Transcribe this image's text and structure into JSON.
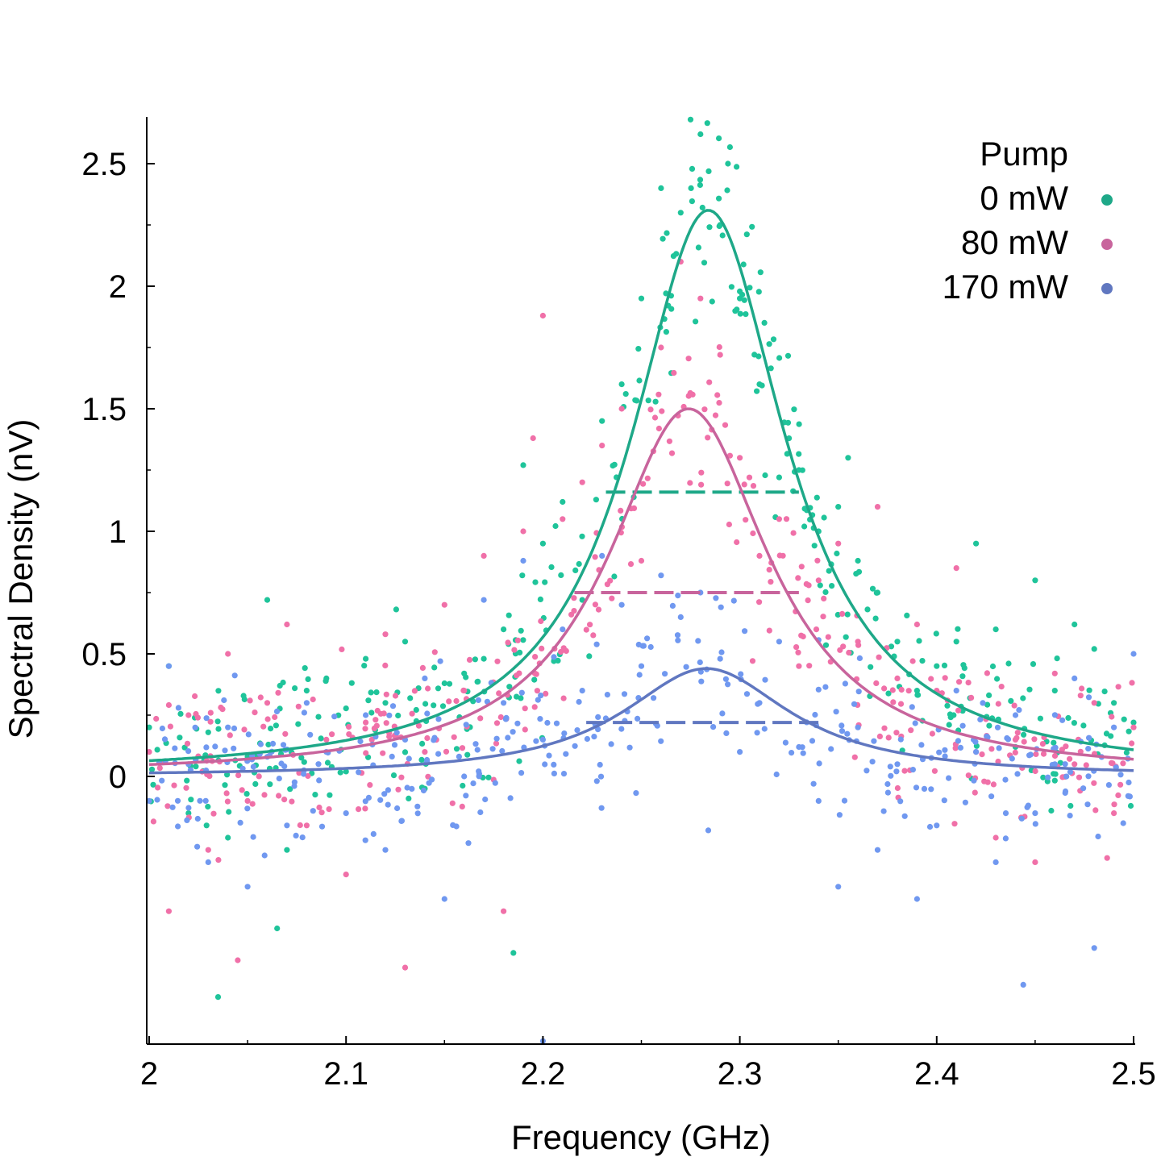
{
  "chart_data": {
    "type": "scatter",
    "xlabel": "Frequency (GHz)",
    "ylabel": "Spectral Density (nV)",
    "xlim": [
      2.0,
      2.5
    ],
    "ylim": [
      -1.1,
      2.68
    ],
    "x_ticks": [
      {
        "value": 2.0,
        "label": "2"
      },
      {
        "value": 2.1,
        "label": "2.1"
      },
      {
        "value": 2.2,
        "label": "2.2"
      },
      {
        "value": 2.3,
        "label": "2.3"
      },
      {
        "value": 2.4,
        "label": "2.4"
      },
      {
        "value": 2.5,
        "label": "2.5"
      }
    ],
    "y_ticks": [
      {
        "value": 0,
        "label": "0"
      },
      {
        "value": 0.5,
        "label": "0.5"
      },
      {
        "value": 1,
        "label": "1"
      },
      {
        "value": 1.5,
        "label": "1.5"
      },
      {
        "value": 2,
        "label": "2"
      },
      {
        "value": 2.5,
        "label": "2.5"
      }
    ],
    "grid": false,
    "legend_title": "Pump",
    "legend_position": "top-right",
    "series": [
      {
        "name": "0 mW",
        "color": "#1ea888",
        "point_color": "#1fc49a",
        "peak_x": 2.284,
        "peak_y": 2.31,
        "hwhm": 0.048,
        "baseline": 0.0,
        "half_max_y": 1.16,
        "half_max_x_range": [
          2.232,
          2.33
        ],
        "points": [
          [
            2.0,
            0.2
          ],
          [
            2.01,
            0.45
          ],
          [
            2.02,
            -0.15
          ],
          [
            2.03,
            0.18
          ],
          [
            2.04,
            -0.25
          ],
          [
            2.05,
            0.08
          ],
          [
            2.06,
            0.72
          ],
          [
            2.07,
            -0.3
          ],
          [
            2.08,
            0.35
          ],
          [
            2.09,
            0.4
          ],
          [
            2.1,
            0.02
          ],
          [
            2.11,
            0.48
          ],
          [
            2.12,
            0.3
          ],
          [
            2.13,
            0.55
          ],
          [
            2.14,
            -0.05
          ],
          [
            2.15,
            0.38
          ],
          [
            2.16,
            0.42
          ],
          [
            2.17,
            0.48
          ],
          [
            2.18,
            0.6
          ],
          [
            2.19,
            1.27
          ],
          [
            2.2,
            0.95
          ],
          [
            2.21,
            1.12
          ],
          [
            2.22,
            0.72
          ],
          [
            2.23,
            1.45
          ],
          [
            2.24,
            1.6
          ],
          [
            2.25,
            1.95
          ],
          [
            2.26,
            2.4
          ],
          [
            2.27,
            2.3
          ],
          [
            2.28,
            2.62
          ],
          [
            2.29,
            2.25
          ],
          [
            2.3,
            1.95
          ],
          [
            2.31,
            1.6
          ],
          [
            2.32,
            1.22
          ],
          [
            2.33,
            1.25
          ],
          [
            2.34,
            1.0
          ],
          [
            2.35,
            1.1
          ],
          [
            2.36,
            0.88
          ],
          [
            2.37,
            0.75
          ],
          [
            2.38,
            0.55
          ],
          [
            2.39,
            0.35
          ],
          [
            2.4,
            0.45
          ],
          [
            2.41,
            0.55
          ],
          [
            2.42,
            0.95
          ],
          [
            2.43,
            0.6
          ],
          [
            2.44,
            0.12
          ],
          [
            2.45,
            0.8
          ],
          [
            2.46,
            0.35
          ],
          [
            2.47,
            0.62
          ],
          [
            2.48,
            0.52
          ],
          [
            2.49,
            0.3
          ],
          [
            2.5,
            0.22
          ],
          [
            2.035,
            -0.9
          ],
          [
            2.275,
            2.68
          ],
          [
            2.294,
            2.5
          ],
          [
            2.065,
            -0.62
          ],
          [
            2.185,
            -0.72
          ],
          [
            2.355,
            1.3
          ]
        ]
      },
      {
        "name": "80 mW",
        "color": "#c8649c",
        "point_color": "#f070a8",
        "peak_x": 2.274,
        "peak_y": 1.5,
        "hwhm": 0.05,
        "baseline": 0.0,
        "half_max_y": 0.75,
        "half_max_x_range": [
          2.216,
          2.33
        ],
        "points": [
          [
            2.0,
            0.1
          ],
          [
            2.01,
            -0.55
          ],
          [
            2.02,
            0.25
          ],
          [
            2.03,
            -0.3
          ],
          [
            2.04,
            0.5
          ],
          [
            2.05,
            -0.1
          ],
          [
            2.06,
            0.3
          ],
          [
            2.07,
            0.62
          ],
          [
            2.08,
            -0.2
          ],
          [
            2.09,
            0.15
          ],
          [
            2.1,
            -0.4
          ],
          [
            2.11,
            0.22
          ],
          [
            2.12,
            0.58
          ],
          [
            2.13,
            -0.78
          ],
          [
            2.14,
            0.1
          ],
          [
            2.15,
            0.7
          ],
          [
            2.16,
            0.35
          ],
          [
            2.17,
            0.9
          ],
          [
            2.18,
            -0.55
          ],
          [
            2.19,
            1.0
          ],
          [
            2.2,
            1.88
          ],
          [
            2.21,
            1.05
          ],
          [
            2.22,
            1.2
          ],
          [
            2.23,
            1.35
          ],
          [
            2.24,
            1.5
          ],
          [
            2.25,
            0.88
          ],
          [
            2.26,
            1.75
          ],
          [
            2.27,
            2.1
          ],
          [
            2.28,
            1.95
          ],
          [
            2.29,
            1.72
          ],
          [
            2.3,
            1.3
          ],
          [
            2.31,
            0.9
          ],
          [
            2.32,
            1.05
          ],
          [
            2.33,
            0.45
          ],
          [
            2.34,
            0.8
          ],
          [
            2.35,
            0.95
          ],
          [
            2.36,
            0.55
          ],
          [
            2.37,
            1.1
          ],
          [
            2.38,
            0.4
          ],
          [
            2.39,
            0.62
          ],
          [
            2.4,
            0.35
          ],
          [
            2.41,
            0.85
          ],
          [
            2.42,
            0.1
          ],
          [
            2.43,
            -0.25
          ],
          [
            2.44,
            0.15
          ],
          [
            2.45,
            -0.35
          ],
          [
            2.46,
            0.42
          ],
          [
            2.47,
            0.05
          ],
          [
            2.48,
            0.3
          ],
          [
            2.49,
            -0.15
          ],
          [
            2.5,
            0.2
          ],
          [
            2.195,
            1.38
          ],
          [
            2.045,
            -0.75
          ],
          [
            2.335,
            0.78
          ]
        ]
      },
      {
        "name": "170 mW",
        "color": "#6077c0",
        "point_color": "#7098f0",
        "peak_x": 2.283,
        "peak_y": 0.44,
        "hwhm": 0.052,
        "baseline": 0.0,
        "half_max_y": 0.22,
        "half_max_x_range": [
          2.222,
          2.34
        ],
        "points": [
          [
            2.0,
            -0.1
          ],
          [
            2.01,
            0.45
          ],
          [
            2.02,
            0.05
          ],
          [
            2.03,
            -0.35
          ],
          [
            2.04,
            0.2
          ],
          [
            2.05,
            -0.45
          ],
          [
            2.06,
            0.08
          ],
          [
            2.07,
            -0.2
          ],
          [
            2.08,
            0.3
          ],
          [
            2.09,
            0.1
          ],
          [
            2.1,
            -0.15
          ],
          [
            2.11,
            0.25
          ],
          [
            2.12,
            -0.3
          ],
          [
            2.13,
            0.15
          ],
          [
            2.14,
            0.4
          ],
          [
            2.15,
            -0.5
          ],
          [
            2.16,
            0.0
          ],
          [
            2.17,
            0.72
          ],
          [
            2.18,
            0.3
          ],
          [
            2.19,
            0.88
          ],
          [
            2.2,
            0.15
          ],
          [
            2.21,
            0.6
          ],
          [
            2.22,
            0.35
          ],
          [
            2.23,
            0.9
          ],
          [
            2.24,
            0.7
          ],
          [
            2.25,
            0.45
          ],
          [
            2.26,
            0.82
          ],
          [
            2.27,
            0.65
          ],
          [
            2.28,
            0.75
          ],
          [
            2.29,
            0.48
          ],
          [
            2.3,
            0.1
          ],
          [
            2.31,
            0.3
          ],
          [
            2.32,
            0.55
          ],
          [
            2.33,
            0.12
          ],
          [
            2.34,
            -0.1
          ],
          [
            2.35,
            -0.45
          ],
          [
            2.36,
            0.2
          ],
          [
            2.37,
            -0.3
          ],
          [
            2.38,
            0.05
          ],
          [
            2.39,
            -0.5
          ],
          [
            2.4,
            -0.2
          ],
          [
            2.41,
            0.35
          ],
          [
            2.42,
            0.1
          ],
          [
            2.43,
            -0.35
          ],
          [
            2.44,
            0.25
          ],
          [
            2.45,
            -0.15
          ],
          [
            2.46,
            0.05
          ],
          [
            2.47,
            0.4
          ],
          [
            2.48,
            -0.7
          ],
          [
            2.49,
            0.2
          ],
          [
            2.5,
            0.5
          ],
          [
            2.444,
            -0.85
          ],
          [
            2.2,
            -1.08
          ],
          [
            2.284,
            -0.22
          ]
        ]
      }
    ]
  }
}
